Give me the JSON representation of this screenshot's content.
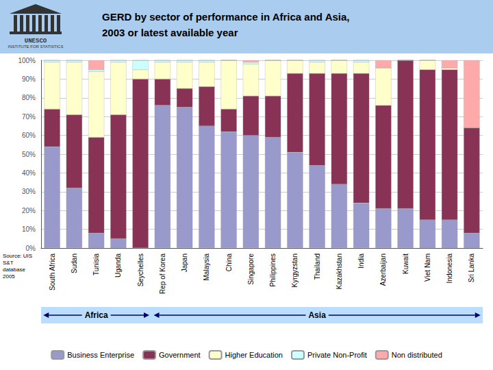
{
  "chart_data": {
    "type": "bar",
    "title": "GERD by sector of performance in Africa and Asia,",
    "subtitle": "2003 or latest available year",
    "categories": [
      "South Africa",
      "Sudan",
      "Tunisia",
      "Uganda",
      "Seychelles",
      "Rep of Korea",
      "Japan",
      "Malaysia",
      "China",
      "Singapore",
      "Philippines",
      "Kyrgyzstan",
      "Thailand",
      "Kazakhstan",
      "India",
      "Azerbaijan",
      "Kuwait",
      "Viet Nam",
      "Indonesia",
      "Sri Lanka"
    ],
    "series": [
      {
        "name": "Business Enterprise",
        "color": "#9999cc",
        "values": [
          54,
          32,
          8,
          5,
          0,
          76,
          75,
          65,
          62,
          60,
          59,
          51,
          44,
          34,
          24,
          21,
          21,
          15,
          15,
          8
        ]
      },
      {
        "name": "Government",
        "color": "#883355",
        "values": [
          20,
          39,
          51,
          66,
          90,
          14,
          10,
          21,
          12,
          21,
          22,
          42,
          49,
          59,
          69,
          55,
          79,
          80,
          80,
          56
        ]
      },
      {
        "name": "Higher Education",
        "color": "#ffffcc",
        "values": [
          25,
          28,
          35,
          28,
          5,
          9,
          14,
          13,
          26,
          17,
          19,
          7,
          6,
          7,
          6,
          20,
          0,
          5,
          1,
          0
        ]
      },
      {
        "name": "Private Non-Profit",
        "color": "#ccffff",
        "values": [
          1,
          1,
          1,
          1,
          5,
          1,
          1,
          1,
          0,
          1,
          0,
          0,
          1,
          0,
          1,
          0,
          0,
          0,
          0,
          0
        ]
      },
      {
        "name": "Non distributed",
        "color": "#ffaaaa",
        "values": [
          0,
          0,
          5,
          0,
          0,
          0,
          0,
          0,
          0,
          1,
          0,
          0,
          0,
          0,
          0,
          4,
          0,
          0,
          4,
          36
        ]
      }
    ],
    "stacked": true,
    "ylim": [
      0,
      100
    ],
    "yticks": [
      {
        "value": 0,
        "label": "0%"
      },
      {
        "value": 10,
        "label": "10%"
      },
      {
        "value": 20,
        "label": "20%"
      },
      {
        "value": 30,
        "label": "30%"
      },
      {
        "value": 40,
        "label": "40%"
      },
      {
        "value": 50,
        "label": "50%"
      },
      {
        "value": 60,
        "label": "60%"
      },
      {
        "value": 70,
        "label": "70%"
      },
      {
        "value": 80,
        "label": "80%"
      },
      {
        "value": 90,
        "label": "90%"
      },
      {
        "value": 100,
        "label": "100%"
      }
    ],
    "grid": true,
    "legend": "bottom",
    "annotations": [
      {
        "text": "Africa",
        "from": "South Africa",
        "to": "Seychelles"
      },
      {
        "text": "Asia",
        "from": "Rep of Korea",
        "to": "Sri Lanka"
      }
    ],
    "source": "Source: UIS\nS&T\ndatabase\n2005",
    "logo": [
      "UNESCO",
      "INSTITUTE FOR STATISTICS"
    ]
  }
}
